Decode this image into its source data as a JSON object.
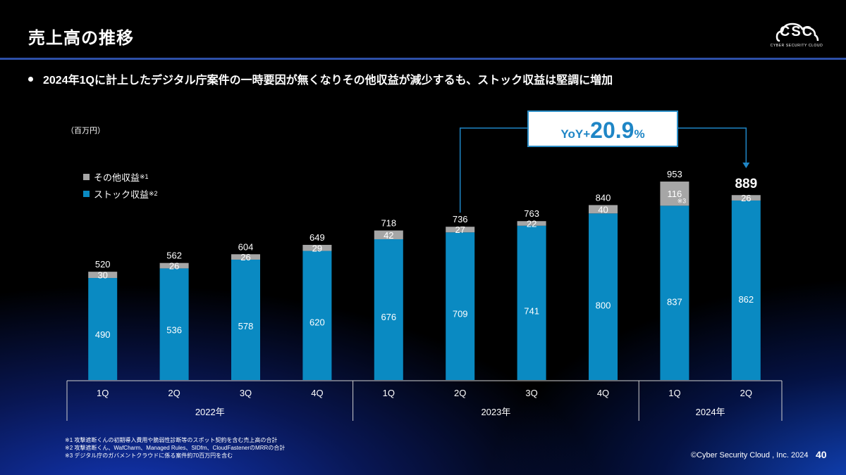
{
  "header": {
    "title": "売上高の推移",
    "logo_text": "CSC",
    "logo_subtext": "CYBER SECURITY CLOUD"
  },
  "bullet": "2024年1Qに計上したデジタル庁案件の一時要因が無くなりその他収益が減少するも、ストック収益は堅調に増加",
  "unit_label": "（百万円）",
  "legend": {
    "other": {
      "label": "その他収益",
      "note": "※1"
    },
    "stock": {
      "label": "ストック収益",
      "note": "※2"
    }
  },
  "yoy": {
    "prefix": "YoY+",
    "value": "20.9",
    "suffix": "%"
  },
  "colors": {
    "stock": "#0a8ac2",
    "other": "#a6a6a6",
    "accent": "#1f86c6",
    "title_line": "#2d4fa8"
  },
  "chart_data": {
    "type": "bar",
    "stacked": true,
    "categories": [
      "1Q",
      "2Q",
      "3Q",
      "4Q",
      "1Q",
      "2Q",
      "3Q",
      "4Q",
      "1Q",
      "2Q"
    ],
    "years": [
      {
        "label": "2022年",
        "quarters": 4
      },
      {
        "label": "2023年",
        "quarters": 4
      },
      {
        "label": "2024年",
        "quarters": 2
      }
    ],
    "series": [
      {
        "name": "ストック収益",
        "values": [
          490,
          536,
          578,
          620,
          676,
          709,
          741,
          800,
          837,
          862
        ]
      },
      {
        "name": "その他収益",
        "values": [
          30,
          26,
          26,
          29,
          42,
          27,
          22,
          40,
          116,
          26
        ]
      }
    ],
    "totals": [
      520,
      562,
      604,
      649,
      718,
      736,
      763,
      840,
      953,
      889
    ],
    "highlight_index": 9,
    "other_annotation": {
      "index": 8,
      "text": "※3"
    },
    "ylim": [
      0,
      1000
    ],
    "unit": "百万円"
  },
  "footnotes": [
    "※1 攻撃遮断くんの初期導入費用や脆弱性診断等のスポット契約を含む売上高の合計",
    "※2 攻撃遮断くん、WafCharm、Managed Rules、SIDfm、CloudFastenerのMRRの合計",
    "※3 デジタル庁のガバメントクラウドに係る案件約70百万円を含む"
  ],
  "copyright": "©Cyber Security Cloud , Inc. 2024",
  "page_number": "40"
}
